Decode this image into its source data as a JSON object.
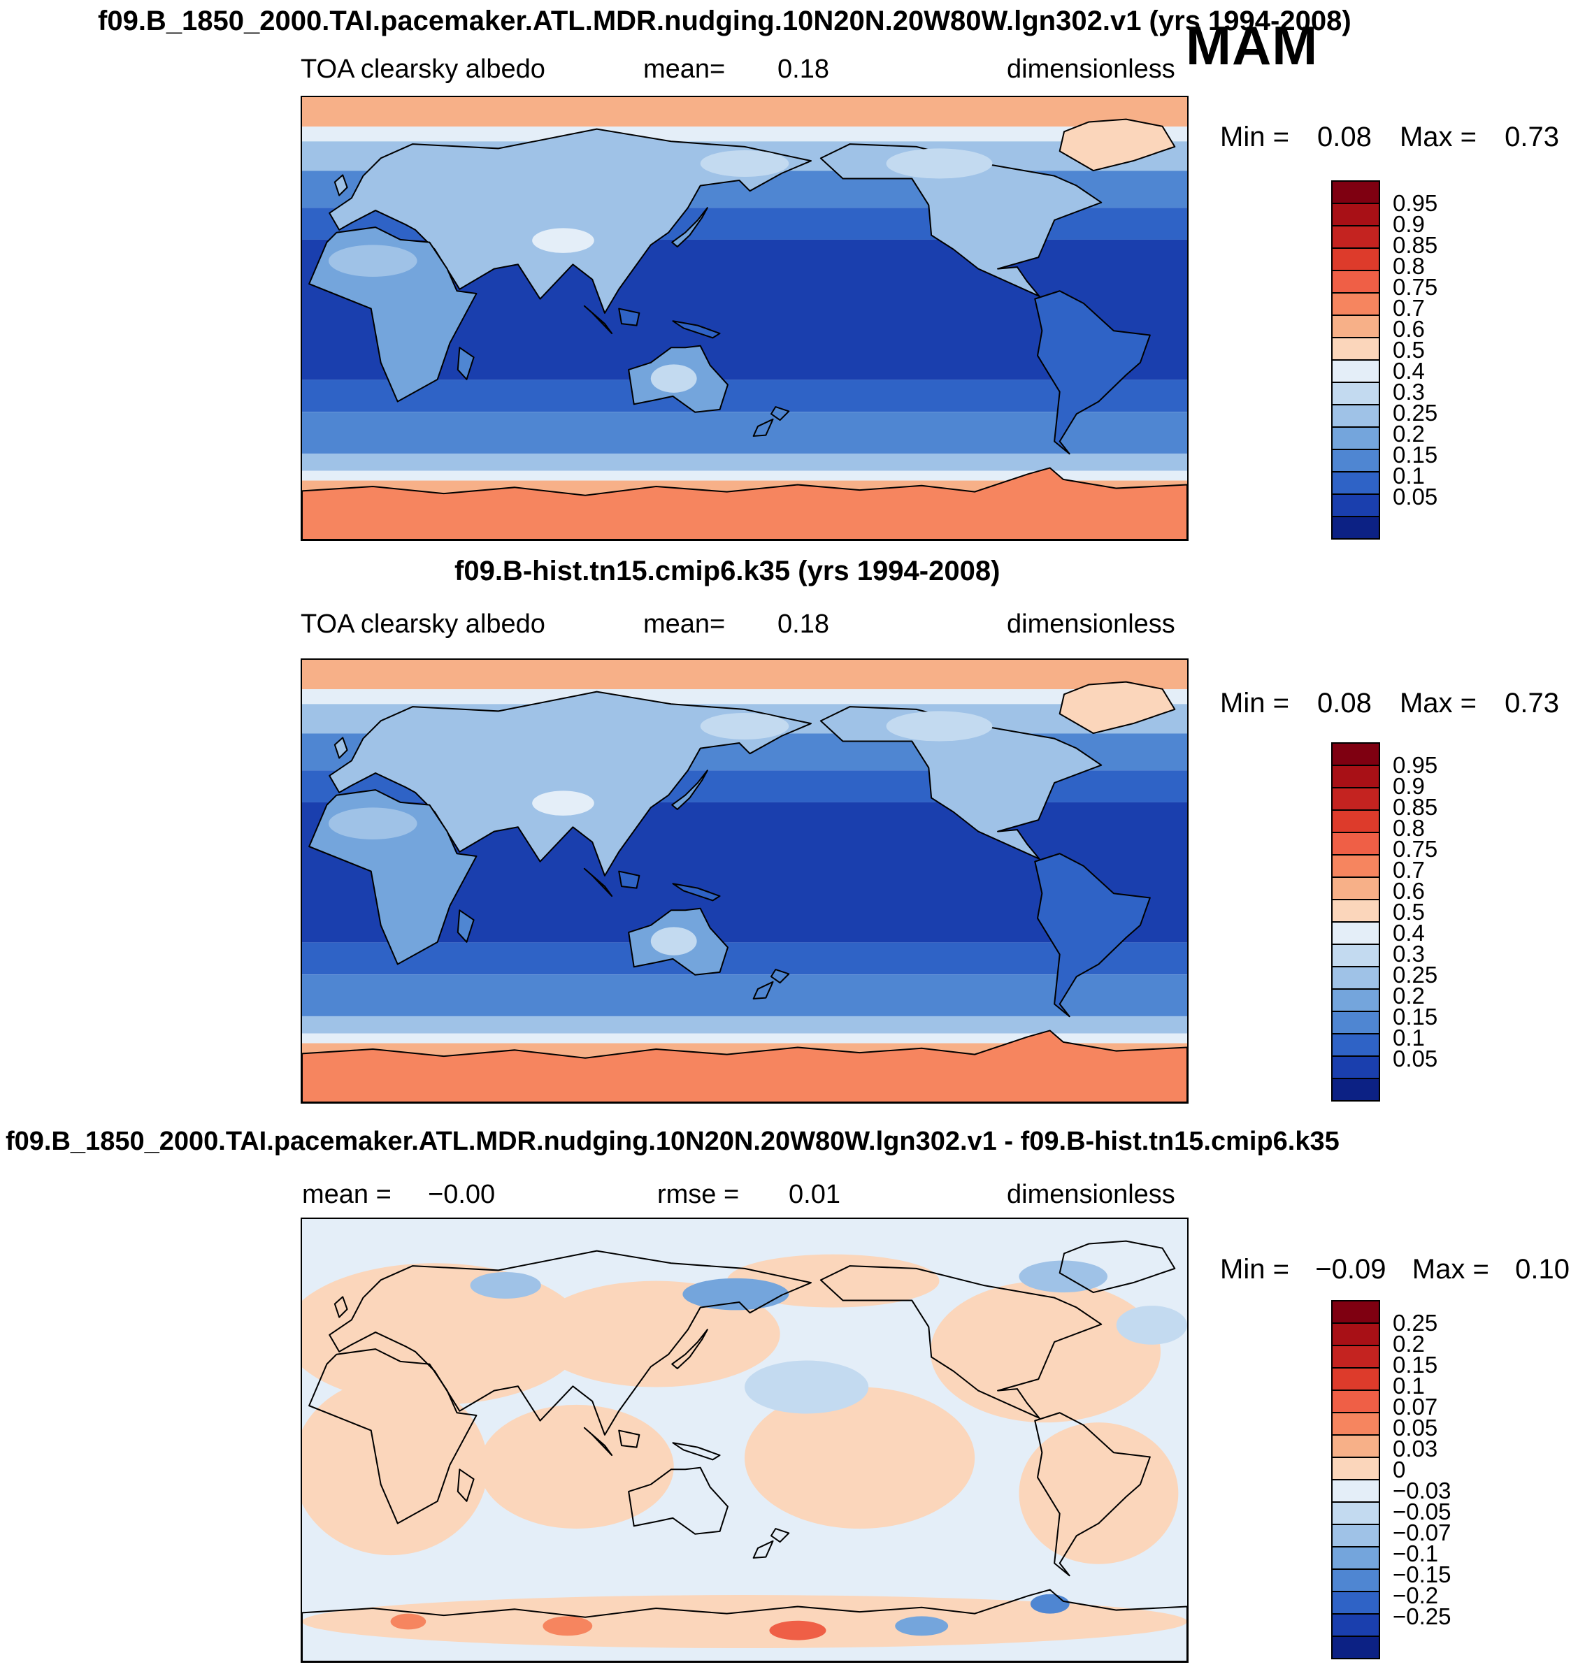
{
  "page": {
    "season": "MAM"
  },
  "chart_data": [
    {
      "type": "heatmap",
      "title": "f09.B_1850_2000.TAI.pacemaker.ATL.MDR.nudging.10N20N.20W80W.lgn302.v1 (yrs 1994-2008)",
      "variable": "TOA clearsky albedo",
      "mean_label": "mean=",
      "mean": "0.18",
      "units": "dimensionless",
      "min_label": "Min =",
      "min": "0.08",
      "max_label": "Max =",
      "max": "0.73",
      "colorbar_levels": [
        "0.95",
        "0.9",
        "0.85",
        "0.8",
        "0.75",
        "0.7",
        "0.6",
        "0.5",
        "0.4",
        "0.3",
        "0.25",
        "0.2",
        "0.15",
        "0.1",
        "0.05"
      ]
    },
    {
      "type": "heatmap",
      "title": "f09.B-hist.tn15.cmip6.k35 (yrs 1994-2008)",
      "variable": "TOA clearsky albedo",
      "mean_label": "mean=",
      "mean": "0.18",
      "units": "dimensionless",
      "min_label": "Min =",
      "min": "0.08",
      "max_label": "Max =",
      "max": "0.73",
      "colorbar_levels": [
        "0.95",
        "0.9",
        "0.85",
        "0.8",
        "0.75",
        "0.7",
        "0.6",
        "0.5",
        "0.4",
        "0.3",
        "0.25",
        "0.2",
        "0.15",
        "0.1",
        "0.05"
      ]
    },
    {
      "type": "heatmap",
      "title": "f09.B_1850_2000.TAI.pacemaker.ATL.MDR.nudging.10N20N.20W80W.lgn302.v1 - f09.B-hist.tn15.cmip6.k35",
      "mean_label": "mean =",
      "mean": "−0.00",
      "rmse_label": "rmse =",
      "rmse": "0.01",
      "units": "dimensionless",
      "min_label": "Min =",
      "min": "−0.09",
      "max_label": "Max =",
      "max": "0.10",
      "colorbar_levels": [
        "0.25",
        "0.2",
        "0.15",
        "0.1",
        "0.07",
        "0.05",
        "0.03",
        "0",
        "−0.03",
        "−0.05",
        "−0.07",
        "−0.1",
        "−0.15",
        "−0.2",
        "−0.25"
      ]
    }
  ],
  "map_render": {
    "palette": [
      "#7f0011",
      "#a81016",
      "#c42320",
      "#dd3b2b",
      "#ef5f46",
      "#f6855f",
      "#f7b088",
      "#fbd6bb",
      "#e4eef8",
      "#c3daf0",
      "#9fc2e7",
      "#74a5dc",
      "#4f86d2",
      "#2f63c6",
      "#1a3fae",
      "#0c2184"
    ],
    "albedo_bands": [
      [
        90,
        78,
        6
      ],
      [
        78,
        72,
        8
      ],
      [
        72,
        60,
        10
      ],
      [
        60,
        45,
        12
      ],
      [
        45,
        32,
        13
      ],
      [
        32,
        -25,
        14
      ],
      [
        -25,
        -38,
        13
      ],
      [
        -38,
        -55,
        12
      ],
      [
        -55,
        -62,
        10
      ],
      [
        -62,
        -66,
        8
      ],
      [
        -66,
        -90,
        6
      ]
    ],
    "albedo_overlays": [
      [
        29.5,
        16.2,
        3.5,
        1.4,
        8
      ],
      [
        8,
        18.5,
        5,
        1.8,
        10
      ],
      [
        42,
        31.8,
        2.6,
        1.6,
        9
      ],
      [
        50,
        7.5,
        5,
        1.5,
        9
      ],
      [
        72,
        7.5,
        6,
        1.7,
        9
      ]
    ],
    "land_levels": {
      "eurasia": 10,
      "africa": 11,
      "north_america": 10,
      "greenland": 7,
      "south_america": 13,
      "australia": 11,
      "antarctica": 5,
      "japan": 11,
      "britain": 10,
      "nz_north": 12,
      "nz_south": 12,
      "sumatra": 13,
      "borneo": 13,
      "new_guinea": 13,
      "madagascar": 12
    },
    "coastlines": {
      "eurasia": "3.1,13.1 5.6,11.4 6.9,8.9 8.9,6.9 12.5,5.3 22.2,5.8 33.3,3.6 41.7,5.0 50.0,5.6 57.5,7.2 54.2,8.6 50.6,10.6 49.4,9.4 45.0,10.0 43.6,12.5 41.4,15.3 39.4,16.7 35.8,21.7 34.2,24.4 32.8,20.6 30.6,18.9 26.9,22.8 24.4,18.9 21.7,19.4 17.8,21.7 15.0,17.2 12.8,15.0 11.7,14.4 8.3,12.8 5.6,14.2 4.2,15.0",
      "africa": "3.9,15.3 8.3,14.7 11.1,16.1 14.4,16.4 16.4,19.4 17.5,21.9 19.7,22.2 16.7,27.8 15.3,31.9 10.8,34.4 8.9,30.0 7.8,23.9 0.8,21.1 2.8,16.4",
      "north_america": "58.6,6.9 61.9,5.3 69.4,5.6 77.0,7.5 85.0,8.9 87.5,10.0 90.3,11.9 85.0,13.9 83.2,18.1 78.6,19.4 80.8,19.2 81.9,20.8 83.3,22.5 76.4,19.4 73.6,17.2 71.1,15.6 70.8,12.2 68.9,9.2 61.1,9.2",
      "greenland": "89.4,8.3 85.6,6.1 86.1,3.9 88.9,2.8 93.1,2.5 97.2,3.3 98.6,5.6 93.9,7.2",
      "south_america": "82.8,22.8 85.6,21.9 88.3,23.3 91.7,26.4 95.8,26.9 94.7,30.0 93.1,31.4 90.0,34.4 87.5,35.8 85.6,38.9 86.7,40.3 85.0,38.9 85.6,33.3 83.1,29.2 83.6,26.4 83.3,25.0",
      "australia": "36.9,30.8 39.4,30.0 41.7,28.3 43.3,28.3 45.0,28.1 46.1,30.3 48.1,32.5 47.2,35.3 44.4,35.6 41.9,33.8 40.0,34.2 37.5,34.7",
      "antarctica": "0,44.5 8,44.0 16,44.8 24,44.1 32,45.0 40,44.0 48,44.6 56,43.8 63,44.4 70,43.9 76,44.6 82,42.6 84.5,41.9 86,43.2 92,44.2 100,43.8 100,50 0,50",
      "japan": "41.8,16.4 43.3,15.3 44.7,13.9 45.8,12.5 45.2,13.6 43.8,15.6 42.4,16.9",
      "britain": "4.2,11.1 5.1,10.2 4.6,8.8 3.7,9.6",
      "nz_north": "53.5,35.0 55.0,35.5 54.0,36.5 53.0,35.8",
      "nz_south": "51.5,37.2 53.2,36.4 52.4,38.2 51.0,38.3",
      "sumatra": "31.9,23.6 34.2,25.6 35.0,26.7 32.8,24.4",
      "borneo": "35.8,23.9 38.1,24.4 37.8,25.8 36.1,25.6",
      "new_guinea": "41.9,25.3 44.7,25.8 47.2,26.7 46.4,27.2 43.1,26.1",
      "madagascar": "17.8,28.3 19.4,29.4 18.6,31.9 17.6,30.8"
    },
    "diff": {
      "background_level": 8,
      "patches": [
        [
          15,
          13,
          17,
          8,
          7
        ],
        [
          10,
          28,
          11,
          10,
          7
        ],
        [
          40,
          13,
          14,
          6,
          7
        ],
        [
          31,
          28,
          11,
          7,
          7
        ],
        [
          63,
          27,
          13,
          8,
          7
        ],
        [
          84,
          15,
          13,
          8,
          7
        ],
        [
          90,
          31,
          9,
          8,
          7
        ],
        [
          50,
          45.5,
          50,
          3,
          7
        ],
        [
          60,
          7,
          12,
          3,
          7
        ],
        [
          49,
          8.5,
          6,
          1.8,
          11
        ],
        [
          23,
          7.5,
          4,
          1.5,
          10
        ],
        [
          86,
          6.5,
          5,
          1.8,
          10
        ],
        [
          57,
          19,
          7,
          3,
          9
        ],
        [
          96,
          12,
          4,
          2.2,
          9
        ],
        [
          30,
          46,
          2.8,
          1.1,
          5
        ],
        [
          56,
          46.5,
          3.2,
          1.1,
          4
        ],
        [
          12,
          45.5,
          2,
          0.9,
          5
        ],
        [
          70,
          46,
          3,
          1.1,
          11
        ],
        [
          84.5,
          43.5,
          2.2,
          1.1,
          12
        ]
      ]
    }
  }
}
